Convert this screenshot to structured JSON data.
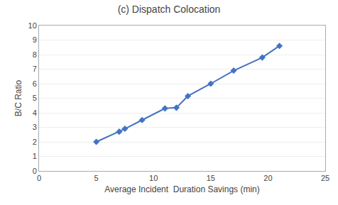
{
  "chart_data": {
    "type": "line",
    "title": "(c) Dispatch Colocation",
    "xlabel": "Average Incident  Duration Savings (min)",
    "ylabel": "B/C Ratio",
    "x": [
      5,
      7,
      7.5,
      9,
      11,
      12,
      13,
      15,
      17,
      19.5,
      21
    ],
    "values": [
      2.0,
      2.7,
      2.9,
      3.5,
      4.3,
      4.35,
      5.15,
      6.0,
      6.9,
      7.8,
      8.6
    ],
    "color": "#4472C4",
    "marker": "diamond",
    "line_style": "solid",
    "xlim": [
      0,
      25
    ],
    "ylim": [
      0,
      10
    ],
    "xticks": [
      0,
      5,
      10,
      15,
      20,
      25
    ],
    "yticks": [
      0,
      1,
      2,
      3,
      4,
      5,
      6,
      7,
      8,
      9,
      10
    ],
    "grid": "y"
  }
}
